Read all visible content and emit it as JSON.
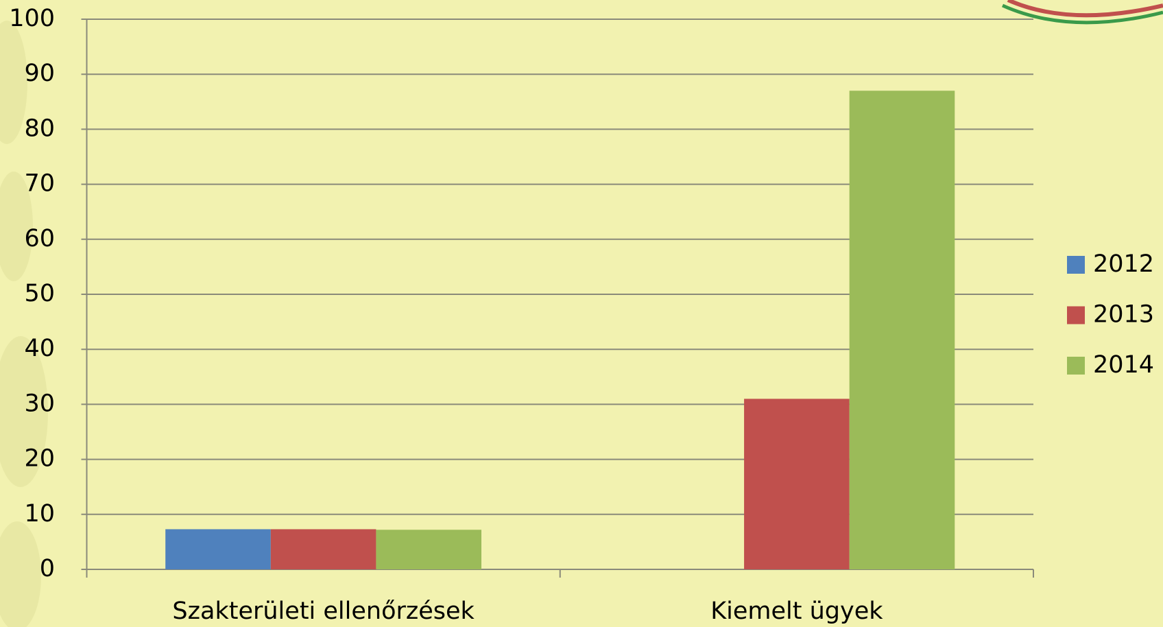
{
  "chart_data": {
    "type": "bar",
    "categories": [
      "Szakterületi ellenőrzések",
      "Kiemelt ügyek"
    ],
    "series": [
      {
        "name": "2012",
        "color": "#4f81bd",
        "values": [
          7.3,
          null
        ]
      },
      {
        "name": "2013",
        "color": "#c0504d",
        "values": [
          7.3,
          31
        ]
      },
      {
        "name": "2014",
        "color": "#9bbb59",
        "values": [
          7.2,
          87
        ]
      }
    ],
    "ylim": [
      0,
      100
    ],
    "yticks": [
      0,
      10,
      20,
      30,
      40,
      50,
      60,
      70,
      80,
      90,
      100
    ],
    "grid": true,
    "legend": "right"
  }
}
